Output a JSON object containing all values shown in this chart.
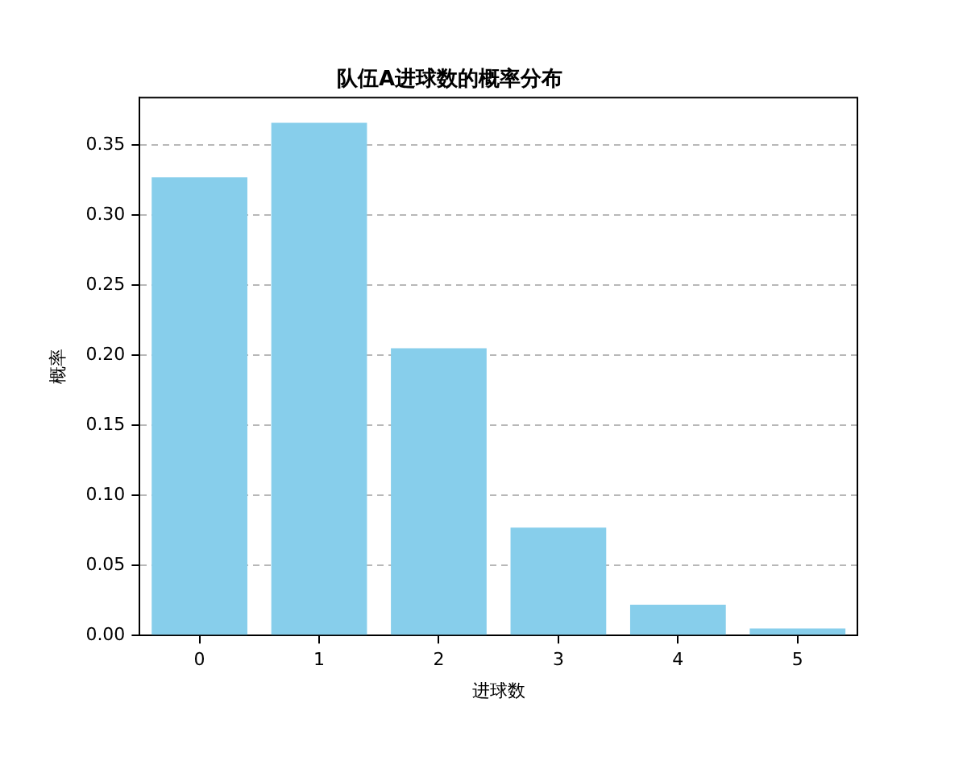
{
  "chart_data": {
    "type": "bar",
    "title": "队伍A进球数的概率分布",
    "xlabel": "进球数",
    "ylabel": "概率",
    "categories": [
      "0",
      "1",
      "2",
      "3",
      "4",
      "5"
    ],
    "values": [
      0.327,
      0.366,
      0.205,
      0.077,
      0.022,
      0.005
    ],
    "color": "#87ceeb",
    "ylim": [
      0,
      0.384
    ],
    "yticks": [
      {
        "value": 0,
        "label": "0.00"
      },
      {
        "value": 0.05,
        "label": "0.05"
      },
      {
        "value": 0.1,
        "label": "0.10"
      },
      {
        "value": 0.15,
        "label": "0.15"
      },
      {
        "value": 0.2,
        "label": "0.20"
      },
      {
        "value": 0.25,
        "label": "0.25"
      },
      {
        "value": 0.3,
        "label": "0.30"
      },
      {
        "value": 0.35,
        "label": "0.35"
      }
    ],
    "grid": "y"
  }
}
